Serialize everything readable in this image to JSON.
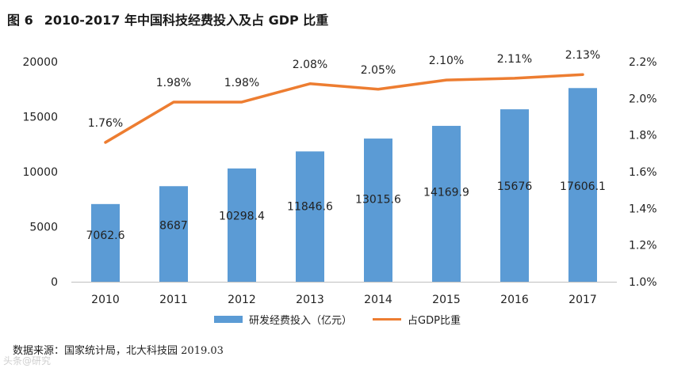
{
  "title": {
    "figure": "图 6",
    "text": "2010-2017 年中国科技经费投入及占 GDP 比重"
  },
  "chart_data": {
    "type": "bar+line",
    "categories": [
      "2010",
      "2011",
      "2012",
      "2013",
      "2014",
      "2015",
      "2016",
      "2017"
    ],
    "series": [
      {
        "name": "研发经费投入（亿元）",
        "kind": "bar",
        "axis": "left",
        "values": [
          7062.6,
          8687,
          10298.4,
          11846.6,
          13015.6,
          14169.9,
          15676,
          17606.1
        ],
        "labels": [
          "7062.6",
          "8687",
          "10298.4",
          "11846.6",
          "13015.6",
          "14169.9",
          "15676",
          "17606.1"
        ]
      },
      {
        "name": "占GDP比重",
        "kind": "line",
        "axis": "right",
        "values": [
          1.76,
          1.98,
          1.98,
          2.08,
          2.05,
          2.1,
          2.11,
          2.13
        ],
        "labels": [
          "1.76%",
          "1.98%",
          "1.98%",
          "2.08%",
          "2.05%",
          "2.10%",
          "2.11%",
          "2.13%"
        ]
      }
    ],
    "left_axis": {
      "ylim": [
        0,
        20000
      ],
      "ticks": [
        "0",
        "5000",
        "10000",
        "15000",
        "20000"
      ]
    },
    "right_axis": {
      "ylim": [
        1.0,
        2.2
      ],
      "ticks": [
        "1.0%",
        "1.2%",
        "1.4%",
        "1.6%",
        "1.8%",
        "2.0%",
        "2.2%"
      ]
    },
    "legend_position": "bottom",
    "colors": {
      "bar": "#5b9bd5",
      "line": "#ed7d31"
    }
  },
  "source": {
    "text": "数据来源：国家统计局，北大科技园",
    "date": "2019.03"
  },
  "watermark": "头条@研究"
}
